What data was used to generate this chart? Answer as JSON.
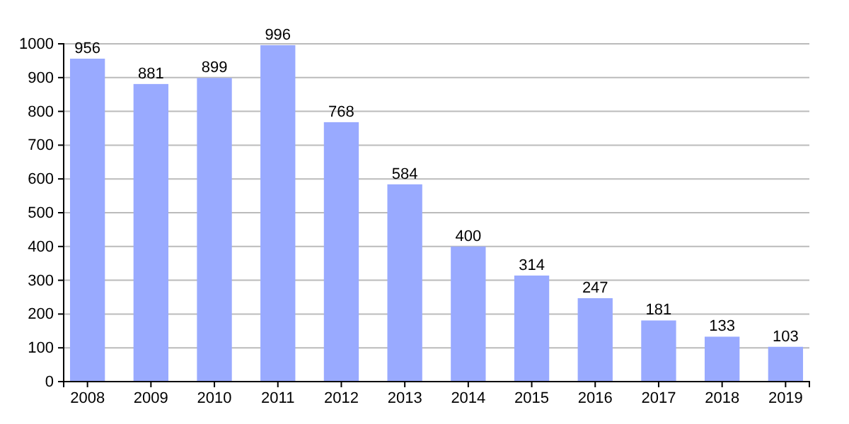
{
  "chart_data": {
    "type": "bar",
    "categories": [
      "2008",
      "2009",
      "2010",
      "2011",
      "2012",
      "2013",
      "2014",
      "2015",
      "2016",
      "2017",
      "2018",
      "2019"
    ],
    "values": [
      956,
      881,
      899,
      996,
      768,
      584,
      400,
      314,
      247,
      181,
      133,
      103
    ],
    "color": "#99aaff",
    "ylim": [
      0,
      1000
    ],
    "yticks": [
      0,
      100,
      200,
      300,
      400,
      500,
      600,
      700,
      800,
      900,
      1000
    ],
    "grid": "y",
    "data_labels": true
  }
}
